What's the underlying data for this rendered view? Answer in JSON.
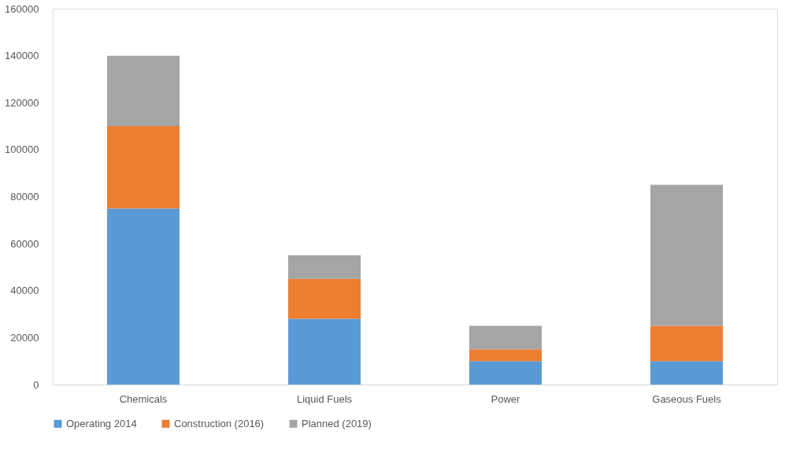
{
  "chart_data": {
    "type": "bar",
    "stacked": true,
    "categories": [
      "Chemicals",
      "Liquid Fuels",
      "Power",
      "Gaseous Fuels"
    ],
    "series": [
      {
        "name": "Operating 2014",
        "color": "#5b9bd5",
        "values": [
          75000,
          28000,
          10000,
          10000
        ]
      },
      {
        "name": "Construction (2016)",
        "color": "#ed7d31",
        "values": [
          35000,
          17000,
          5000,
          15000
        ]
      },
      {
        "name": "Planned (2019)",
        "color": "#a5a5a5",
        "values": [
          30000,
          10000,
          10000,
          60000
        ]
      }
    ],
    "ylim": [
      0,
      160000
    ],
    "yticks": [
      0,
      20000,
      40000,
      60000,
      80000,
      100000,
      120000,
      140000,
      160000
    ],
    "grid": false,
    "legend": "bottom"
  }
}
